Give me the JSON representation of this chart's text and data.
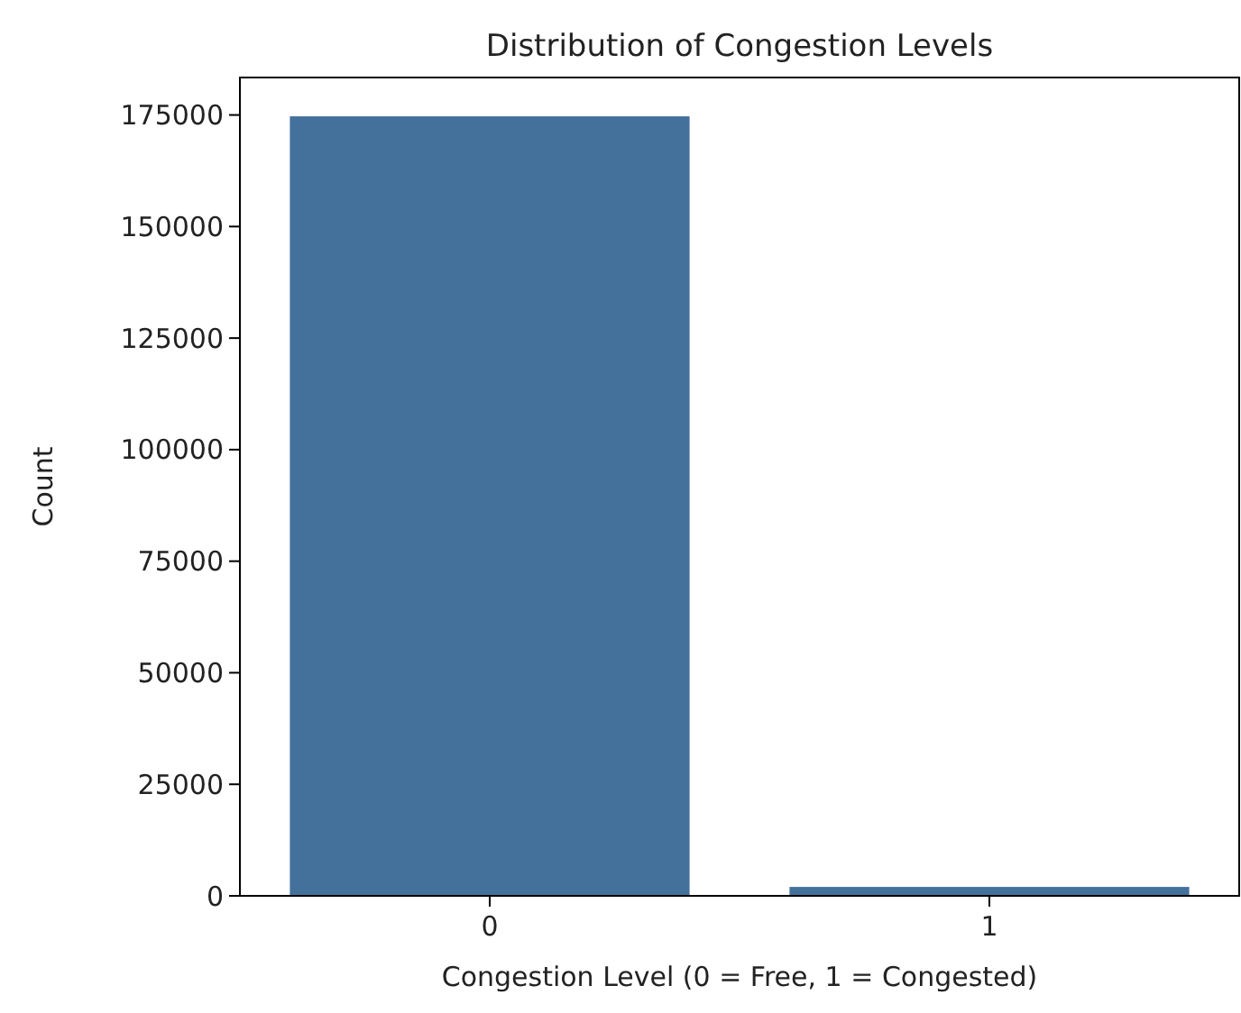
{
  "chart_data": {
    "type": "bar",
    "title": "Distribution of Congestion Levels",
    "xlabel": "Congestion Level (0 = Free, 1 = Congested)",
    "ylabel": "Count",
    "categories": [
      "0",
      "1"
    ],
    "values": [
      174700,
      2000
    ],
    "color": "#44719c",
    "ylim": [
      0,
      183400
    ],
    "yticks": [
      0,
      25000,
      50000,
      75000,
      100000,
      125000,
      150000,
      175000
    ],
    "grid": false
  }
}
